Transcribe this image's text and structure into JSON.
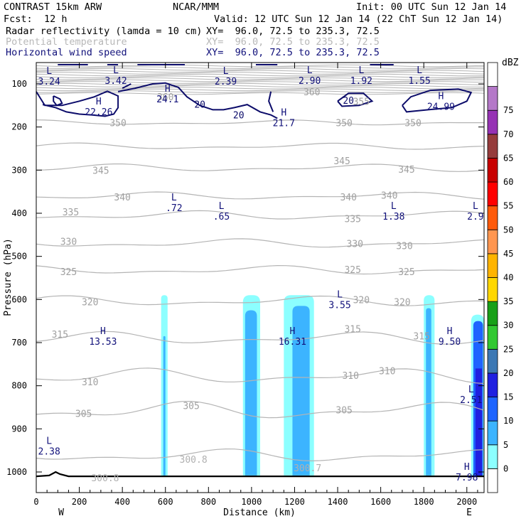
{
  "header": {
    "run": "CONTRAST 15km ARW",
    "center": "NCAR/MMM",
    "init": "Init: 00 UTC Sun 12 Jan 14",
    "fcst_label": "Fcst:",
    "fcst_value": "12 h",
    "valid": "Valid: 12 UTC Sun 12 Jan 14 (22 ChT Sun 12 Jan 14)",
    "fields": [
      {
        "name": "Radar reflectivity (lamda = 10 cm)",
        "xy": "XY=  96.0, 72.5 to 235.3, 72.5"
      },
      {
        "name": "Potential temperature",
        "xy": "XY=  96.0, 72.5 to 235.3, 72.5"
      },
      {
        "name": "Horizontal wind speed",
        "xy": "XY=  96.0, 72.5 to 235.3, 72.5"
      }
    ]
  },
  "chart_data": {
    "type": "cross-section",
    "xlabel": "Distance (km)",
    "ylabel": "Pressure (hPa)",
    "xlim": [
      0,
      2080
    ],
    "ylim_pressure": [
      1050,
      50
    ],
    "x_ticks": [
      0,
      200,
      400,
      600,
      800,
      1000,
      1200,
      1400,
      1600,
      1800,
      2000
    ],
    "y_ticks": [
      100,
      200,
      300,
      400,
      500,
      600,
      700,
      800,
      900,
      1000
    ],
    "x_end_labels": {
      "left": "W",
      "right": "E"
    },
    "colorbar": {
      "unit": "dBZ",
      "levels": [
        0,
        5,
        10,
        15,
        20,
        25,
        30,
        35,
        40,
        45,
        50,
        55,
        60,
        65,
        70,
        75
      ],
      "colors": [
        "#ffffff",
        "#8cffff",
        "#3cb4ff",
        "#1e64ff",
        "#2020e0",
        "#3c78b4",
        "#32c832",
        "#18a018",
        "#ffd700",
        "#ffb400",
        "#ff9650",
        "#ff5a0a",
        "#ff0000",
        "#c80000",
        "#963c3c",
        "#9632b4",
        "#b478c8",
        "#ffffff"
      ]
    },
    "potential_temperature_labels": [
      {
        "text": "360",
        "x": 600,
        "p": 130
      },
      {
        "text": "360",
        "x": 1280,
        "p": 118
      },
      {
        "text": "355",
        "x": 1510,
        "p": 140
      },
      {
        "text": "350",
        "x": 380,
        "p": 190
      },
      {
        "text": "350",
        "x": 1430,
        "p": 190
      },
      {
        "text": "350",
        "x": 1750,
        "p": 190
      },
      {
        "text": "345",
        "x": 300,
        "p": 300
      },
      {
        "text": "345",
        "x": 1420,
        "p": 278
      },
      {
        "text": "345",
        "x": 1720,
        "p": 298
      },
      {
        "text": "340",
        "x": 400,
        "p": 362
      },
      {
        "text": "340",
        "x": 1450,
        "p": 362
      },
      {
        "text": "340",
        "x": 1640,
        "p": 358
      },
      {
        "text": "335",
        "x": 160,
        "p": 397
      },
      {
        "text": "335",
        "x": 1470,
        "p": 412
      },
      {
        "text": "330",
        "x": 150,
        "p": 465
      },
      {
        "text": "330",
        "x": 1480,
        "p": 470
      },
      {
        "text": "330",
        "x": 1710,
        "p": 475
      },
      {
        "text": "325",
        "x": 150,
        "p": 535
      },
      {
        "text": "325",
        "x": 1470,
        "p": 530
      },
      {
        "text": "325",
        "x": 1720,
        "p": 535
      },
      {
        "text": "320",
        "x": 250,
        "p": 605
      },
      {
        "text": "320",
        "x": 1510,
        "p": 600
      },
      {
        "text": "320",
        "x": 1700,
        "p": 605
      },
      {
        "text": "315",
        "x": 110,
        "p": 680
      },
      {
        "text": "315",
        "x": 1470,
        "p": 668
      },
      {
        "text": "315",
        "x": 1790,
        "p": 684
      },
      {
        "text": "310",
        "x": 250,
        "p": 791
      },
      {
        "text": "310",
        "x": 1460,
        "p": 776
      },
      {
        "text": "310",
        "x": 1630,
        "p": 765
      },
      {
        "text": "305",
        "x": 220,
        "p": 864
      },
      {
        "text": "305",
        "x": 720,
        "p": 846
      },
      {
        "text": "305",
        "x": 1430,
        "p": 856
      }
    ],
    "surface_theta_labels": [
      {
        "text": "300.8",
        "x": 320,
        "p": 1013
      },
      {
        "text": "300.8",
        "x": 730,
        "p": 970
      },
      {
        "text": "300.7",
        "x": 1260,
        "p": 990
      }
    ],
    "wind_speed_labels": [
      {
        "kind": "L",
        "value": "3.24",
        "x": 60,
        "p": 87
      },
      {
        "kind": "L",
        "value": "3.42",
        "x": 370,
        "p": 85
      },
      {
        "kind": "L",
        "value": "2.39",
        "x": 880,
        "p": 87
      },
      {
        "kind": "L",
        "value": "2.90",
        "x": 1270,
        "p": 85
      },
      {
        "kind": "L",
        "value": "1.92",
        "x": 1510,
        "p": 85
      },
      {
        "kind": "L",
        "value": "1.55",
        "x": 1780,
        "p": 85
      },
      {
        "kind": "H",
        "value": "22.26",
        "x": 290,
        "p": 158
      },
      {
        "kind": "H",
        "value": "24.1",
        "x": 610,
        "p": 128
      },
      {
        "kind": "H",
        "value": "21.7",
        "x": 1150,
        "p": 183
      },
      {
        "kind": "H",
        "value": "24.99",
        "x": 1880,
        "p": 145
      },
      {
        "kind": "L",
        "value": ".72",
        "x": 640,
        "p": 380
      },
      {
        "kind": "L",
        "value": ".65",
        "x": 860,
        "p": 400
      },
      {
        "kind": "L",
        "value": "1.38",
        "x": 1660,
        "p": 400
      },
      {
        "kind": "L",
        "value": "2.9",
        "x": 2040,
        "p": 400
      },
      {
        "kind": "L",
        "value": "3.55",
        "x": 1410,
        "p": 605
      },
      {
        "kind": "H",
        "value": "13.53",
        "x": 310,
        "p": 690
      },
      {
        "kind": "H",
        "value": "16.31",
        "x": 1190,
        "p": 690
      },
      {
        "kind": "H",
        "value": "9.50",
        "x": 1920,
        "p": 690
      },
      {
        "kind": "L",
        "value": "2.51",
        "x": 2020,
        "p": 825
      },
      {
        "kind": "L",
        "value": "2.38",
        "x": 60,
        "p": 945
      },
      {
        "kind": "H",
        "value": "7.98",
        "x": 2000,
        "p": 1005
      }
    ],
    "wind_contour_labels": [
      {
        "text": "20",
        "x": 760,
        "p": 147
      },
      {
        "text": "20",
        "x": 940,
        "p": 172
      },
      {
        "text": "20",
        "x": 1450,
        "p": 138
      }
    ],
    "reflectivity_columns": [
      {
        "x0": 580,
        "x1": 610,
        "top_p": 590,
        "core": {
          "x0": 590,
          "x1": 600,
          "top_p": 685,
          "dbz": 10
        },
        "dbz": 5
      },
      {
        "x0": 960,
        "x1": 1040,
        "top_p": 590,
        "core": {
          "x0": 970,
          "x1": 1025,
          "top_p": 625,
          "dbz": 10
        },
        "dbz": 5
      },
      {
        "x0": 1150,
        "x1": 1290,
        "top_p": 590,
        "core": {
          "x0": 1190,
          "x1": 1270,
          "top_p": 615,
          "dbz": 10
        },
        "dbz": 5
      },
      {
        "x0": 1800,
        "x1": 1850,
        "top_p": 590,
        "core": {
          "x0": 1810,
          "x1": 1835,
          "top_p": 620,
          "dbz": 10
        },
        "dbz": 5
      },
      {
        "x0": 2020,
        "x1": 2080,
        "top_p": 635,
        "core": {
          "x0": 2030,
          "x1": 2075,
          "top_p": 650,
          "dbz": 15
        },
        "dbz": 5
      }
    ],
    "terrain_note": "surface pressure near 1005-1010 hPa"
  }
}
